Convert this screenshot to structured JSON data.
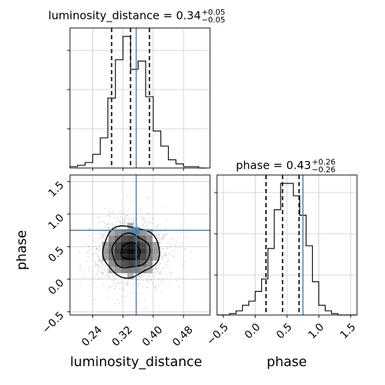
{
  "chart_data": [
    {
      "type": "histogram",
      "panel": "top-left",
      "parameter": "luminosity_distance",
      "title": {
        "label": "luminosity_distance = 0.34",
        "upper": "+0.05",
        "lower": "−0.05"
      },
      "xlim": [
        0.18,
        0.55
      ],
      "bin_edges": [
        0.18,
        0.2,
        0.22,
        0.24,
        0.26,
        0.28,
        0.3,
        0.32,
        0.34,
        0.36,
        0.38,
        0.4,
        0.42,
        0.44,
        0.46,
        0.48,
        0.5,
        0.52,
        0.54
      ],
      "counts": [
        1,
        2,
        4,
        10,
        22,
        51,
        79,
        96,
        72,
        78,
        52,
        27,
        16,
        6,
        3,
        1,
        1,
        0
      ],
      "quantiles": [
        0.29,
        0.34,
        0.39
      ],
      "truth": 0.355,
      "grid": true
    },
    {
      "type": "histogram",
      "panel": "bottom-right",
      "parameter": "phase",
      "title": {
        "label": "phase = 0.43",
        "upper": "+0.26",
        "lower": "−0.26"
      },
      "xlim": [
        -0.6,
        1.6
      ],
      "xticks": [
        "−0.5",
        "0.0",
        "0.5",
        "1.0",
        "1.5"
      ],
      "xlabel": "phase",
      "bin_edges": [
        -0.6,
        -0.5,
        -0.4,
        -0.3,
        -0.2,
        -0.1,
        0.0,
        0.1,
        0.2,
        0.3,
        0.4,
        0.5,
        0.6,
        0.7,
        0.8,
        0.9,
        1.0,
        1.1,
        1.2,
        1.3,
        1.4,
        1.5,
        1.6
      ],
      "counts": [
        0,
        0,
        1,
        3,
        7,
        10,
        17,
        26,
        48,
        76,
        95,
        95,
        86,
        72,
        50,
        24,
        7,
        3,
        1,
        0,
        0,
        0
      ],
      "quantiles": [
        0.17,
        0.43,
        0.69
      ],
      "truth": 0.75,
      "grid": true
    },
    {
      "type": "scatter-contour",
      "panel": "bottom-left",
      "xlim": [
        0.18,
        0.55
      ],
      "ylim": [
        -0.55,
        1.6
      ],
      "xticks": [
        "0.24",
        "0.32",
        "0.40",
        "0.48"
      ],
      "yticks": [
        "−0.5",
        "0.0",
        "0.5",
        "1.0",
        "1.5"
      ],
      "xlabel": "luminosity_distance",
      "ylabel": "phase",
      "center": [
        0.34,
        0.43
      ],
      "sigma": [
        0.05,
        0.26
      ],
      "contour_levels": [
        0.5,
        1.0,
        1.5
      ],
      "truth": [
        0.355,
        0.75
      ],
      "grid": true
    }
  ],
  "colors": {
    "truth": "#4682b4",
    "hist": "#000000",
    "quantile": "#000000",
    "grid": "#c8c8c8",
    "scatter": "#a0a0a0"
  }
}
